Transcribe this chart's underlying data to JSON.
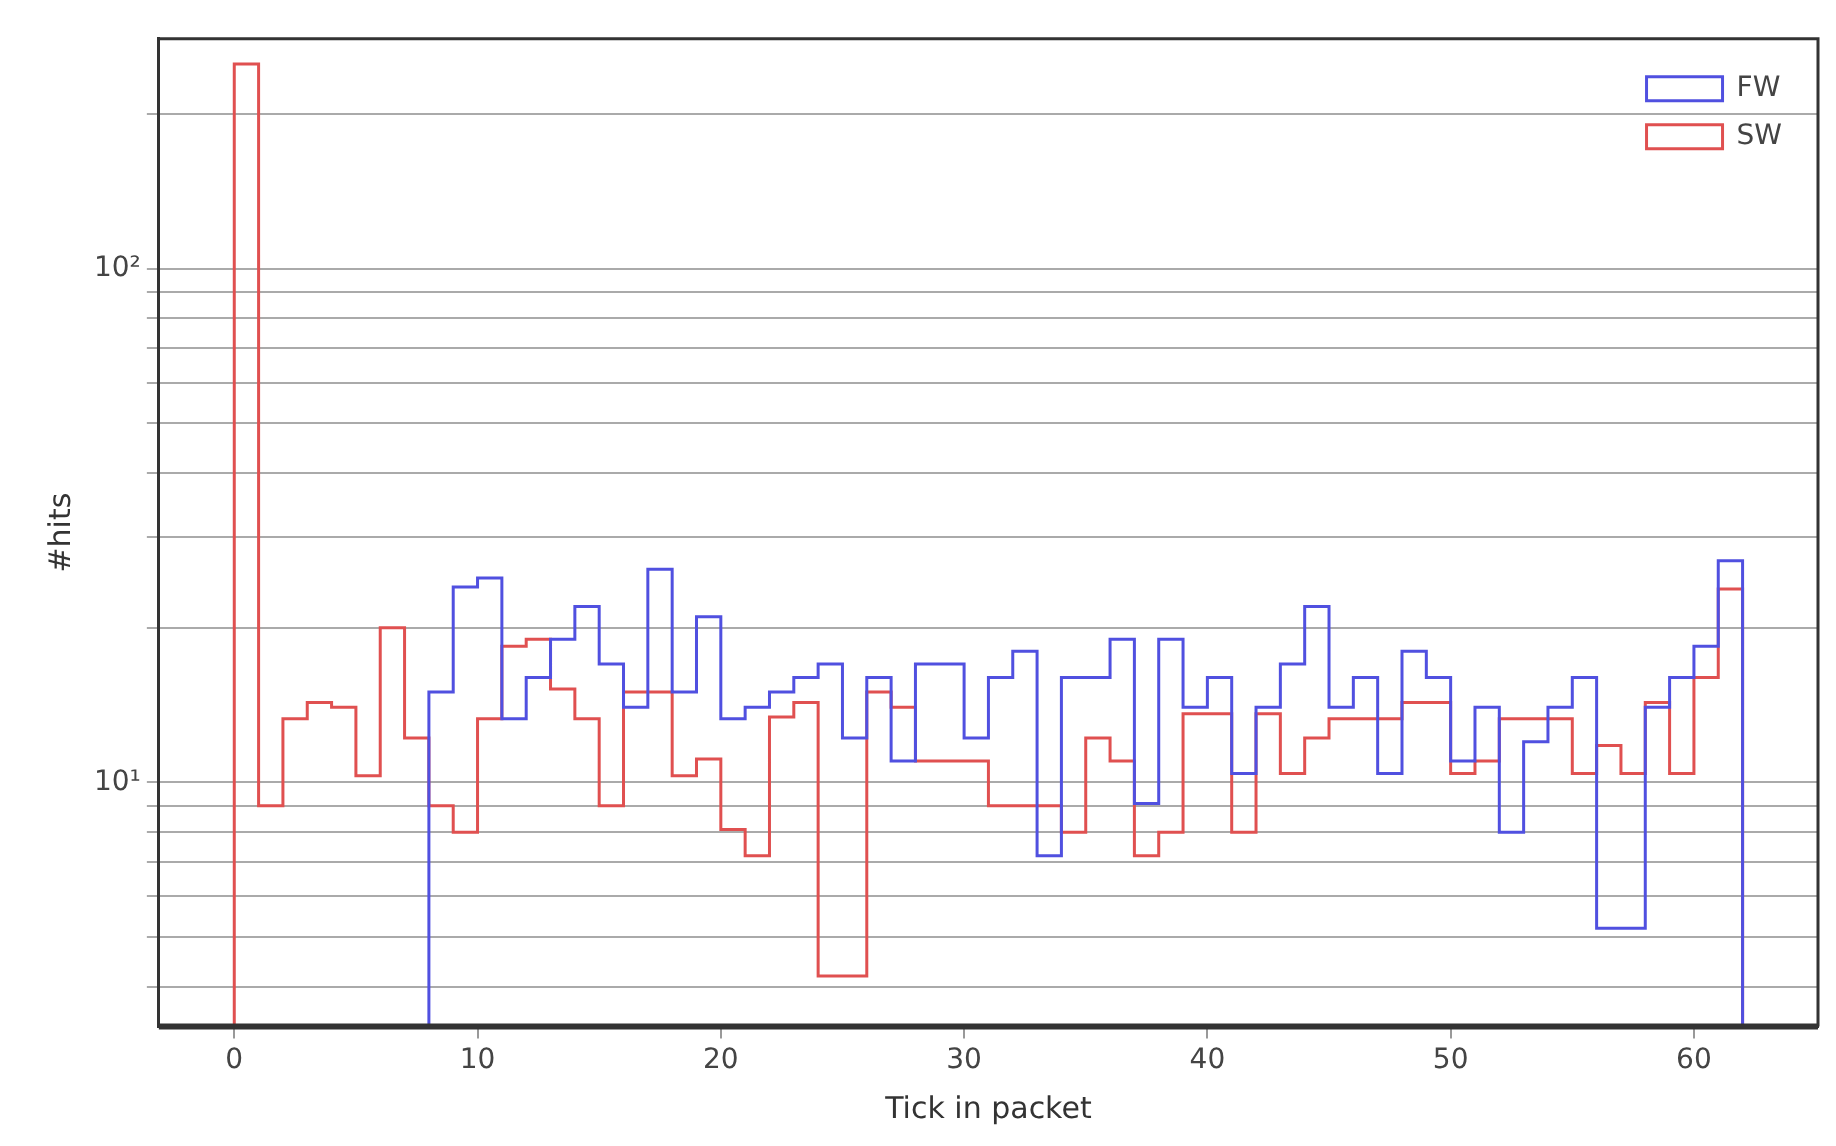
{
  "chart_data": {
    "type": "histogram",
    "xlabel": "Tick in packet",
    "ylabel": "#hits",
    "bins": [
      0,
      1,
      2,
      3,
      4,
      5,
      6,
      7,
      8,
      9,
      10,
      11,
      12,
      13,
      14,
      15,
      16,
      17,
      18,
      19,
      20,
      21,
      22,
      23,
      24,
      25,
      26,
      27,
      28,
      29,
      30,
      31,
      32,
      33,
      34,
      35,
      36,
      37,
      38,
      39,
      40,
      41,
      42,
      43,
      44,
      45,
      46,
      47,
      48,
      49,
      50,
      51,
      52,
      53,
      54,
      55,
      56,
      57,
      58,
      59,
      60,
      61,
      62
    ],
    "series": [
      {
        "name": "FW",
        "color": "#5050e0",
        "values": [
          null,
          null,
          null,
          null,
          null,
          null,
          null,
          null,
          15,
          24,
          25,
          13.3,
          16,
          19,
          22,
          17,
          14,
          26,
          15,
          21,
          13.3,
          14,
          15,
          16,
          17,
          12.2,
          16,
          11,
          17,
          17,
          12.2,
          16,
          18,
          7.2,
          16,
          16,
          19,
          9.1,
          19,
          14,
          16,
          10.4,
          14,
          17,
          22,
          14,
          16,
          10.4,
          18,
          16,
          11,
          14,
          8,
          12,
          14,
          16,
          5.2,
          5.2,
          14,
          16,
          18.4,
          27
        ]
      },
      {
        "name": "SW",
        "color": "#e05050",
        "values": [
          250,
          9,
          13.3,
          14.3,
          14,
          10.3,
          20,
          12.2,
          9,
          8,
          13.3,
          18.4,
          19,
          15.2,
          13.3,
          9,
          15,
          15,
          10.3,
          11.1,
          8.1,
          7.2,
          13.4,
          14.3,
          4.2,
          4.2,
          15,
          14,
          11,
          11,
          11,
          9,
          9,
          9,
          8,
          12.2,
          11,
          7.2,
          8,
          13.6,
          13.6,
          8,
          13.6,
          10.4,
          12.2,
          13.3,
          13.3,
          13.3,
          14.3,
          14.3,
          10.4,
          11,
          13.3,
          13.3,
          13.3,
          10.4,
          11.8,
          10.4,
          14.3,
          10.4,
          16,
          23.8
        ]
      }
    ],
    "xlim": [
      -3.1,
      65.1
    ],
    "xticks": [
      0,
      10,
      20,
      30,
      40,
      50,
      60
    ],
    "ylim": [
      3.35,
      280
    ],
    "log": true,
    "yticks": [
      {
        "value": 4,
        "label": null
      },
      {
        "value": 5,
        "label": null
      },
      {
        "value": 6,
        "label": null
      },
      {
        "value": 7,
        "label": null
      },
      {
        "value": 8,
        "label": null
      },
      {
        "value": 9,
        "label": null
      },
      {
        "value": 10,
        "label": "10¹"
      },
      {
        "value": 20,
        "label": null
      },
      {
        "value": 30,
        "label": null
      },
      {
        "value": 40,
        "label": null
      },
      {
        "value": 50,
        "label": null
      },
      {
        "value": 60,
        "label": null
      },
      {
        "value": 70,
        "label": null
      },
      {
        "value": 80,
        "label": null
      },
      {
        "value": 90,
        "label": null
      },
      {
        "value": 100,
        "label": "10²"
      },
      {
        "value": 200,
        "label": null
      }
    ],
    "grid": "y",
    "legend": "top right"
  }
}
